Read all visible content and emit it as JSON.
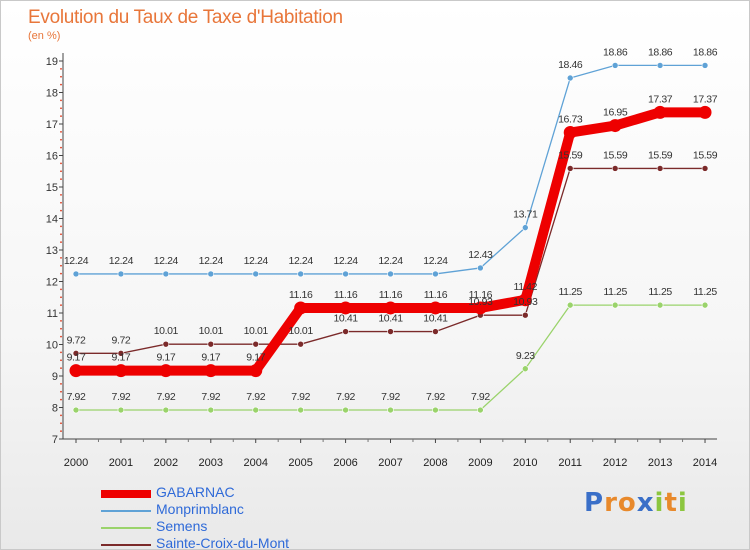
{
  "chart_data": {
    "type": "line",
    "title": "Evolution du Taux de Taxe d'Habitation",
    "unit_label": "(en %)",
    "x": [
      "2000",
      "2001",
      "2002",
      "2003",
      "2004",
      "2005",
      "2006",
      "2007",
      "2008",
      "2009",
      "2010",
      "2011",
      "2012",
      "2013",
      "2014"
    ],
    "ylim": [
      7,
      19
    ],
    "yticks": [
      7,
      8,
      9,
      10,
      11,
      12,
      13,
      14,
      15,
      16,
      17,
      18,
      19
    ],
    "grid": false,
    "legend_placement": "bottom-left",
    "series": [
      {
        "name": "GABARNAC",
        "color": "#ee0000",
        "emphasis": true,
        "values": [
          9.17,
          9.17,
          9.17,
          9.17,
          9.17,
          11.16,
          11.16,
          11.16,
          11.16,
          11.16,
          11.42,
          16.73,
          16.95,
          17.37,
          17.37
        ],
        "labels": [
          "9.17",
          "9.17",
          "9.17",
          "9.17",
          "9.17",
          "11.16",
          "11.16",
          "11.16",
          "11.16",
          "11.16",
          "11.42",
          "16.73",
          "16.95",
          "17.37",
          "17.37"
        ]
      },
      {
        "name": "Monprimblanc",
        "color": "#5fa2d6",
        "values": [
          12.24,
          12.24,
          12.24,
          12.24,
          12.24,
          12.24,
          12.24,
          12.24,
          12.24,
          12.43,
          13.71,
          18.46,
          18.86,
          18.86,
          18.86
        ],
        "labels": [
          "12.24",
          "12.24",
          "12.24",
          "12.24",
          "12.24",
          "12.24",
          "12.24",
          "12.24",
          "12.24",
          "12.43",
          "13.71",
          "18.46",
          "18.86",
          "18.86",
          "18.86"
        ]
      },
      {
        "name": "Semens",
        "color": "#9ad36b",
        "values": [
          7.92,
          7.92,
          7.92,
          7.92,
          7.92,
          7.92,
          7.92,
          7.92,
          7.92,
          7.92,
          9.23,
          11.25,
          11.25,
          11.25,
          11.25
        ],
        "labels": [
          "7.92",
          "7.92",
          "7.92",
          "7.92",
          "7.92",
          "7.92",
          "7.92",
          "7.92",
          "7.92",
          "7.92",
          "9.23",
          "11.25",
          "11.25",
          "11.25",
          "11.25"
        ]
      },
      {
        "name": "Sainte-Croix-du-Mont",
        "color": "#7b2a2a",
        "values": [
          9.72,
          9.72,
          10.01,
          10.01,
          10.01,
          10.01,
          10.41,
          10.41,
          10.41,
          10.93,
          10.93,
          15.59,
          15.59,
          15.59,
          15.59
        ],
        "labels": [
          "9.72",
          "9.72",
          "10.01",
          "10.01",
          "10.01",
          "10.01",
          "10.41",
          "10.41",
          "10.41",
          "10.93",
          "10.93",
          "15.59",
          "15.59",
          "15.59",
          "15.59"
        ]
      }
    ]
  },
  "logo": {
    "letters": [
      "P",
      "r",
      "o",
      "x",
      "i",
      "t",
      "i"
    ],
    "colors": [
      "#3a6fc8",
      "#e8892b",
      "#e8892b",
      "#3a6fc8",
      "#8cc63f",
      "#e8892b",
      "#8cc63f"
    ]
  }
}
